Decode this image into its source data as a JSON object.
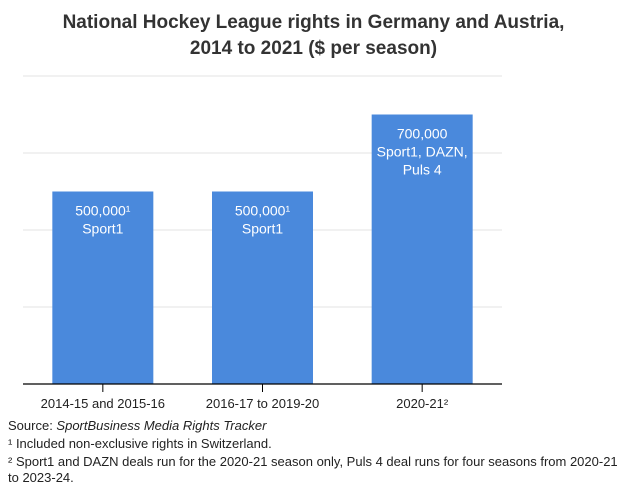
{
  "chart_data": {
    "type": "bar",
    "title": "National Hockey League rights in Germany and Austria, 2014 to 2021 ($ per season)",
    "title_lines": [
      "National Hockey League rights in Germany and Austria,",
      "2014 to 2021 ($ per season)"
    ],
    "categories": [
      "2014-15 and 2015-16",
      "2016-17 to 2019-20",
      "2020-21²"
    ],
    "values": [
      500000,
      500000,
      700000
    ],
    "data_labels": [
      [
        "500,000¹",
        "Sport1"
      ],
      [
        "500,000¹",
        "Sport1"
      ],
      [
        "700,000",
        "Sport1, DAZN,",
        "Puls 4"
      ]
    ],
    "xlabel": "",
    "ylabel": "",
    "ylim": [
      0,
      800000
    ],
    "grid": true,
    "y_tick_labels_shown": false,
    "bar_color": "#4a89dc"
  },
  "source": {
    "prefix": "Source: ",
    "name": "SportBusiness Media Rights Tracker"
  },
  "footnotes": [
    "¹ Included non-exclusive rights in Switzerland.",
    "² Sport1 and DAZN deals run for the 2020-21 season only, Puls 4 deal runs for four seasons from 2020-21 to 2023-24."
  ]
}
